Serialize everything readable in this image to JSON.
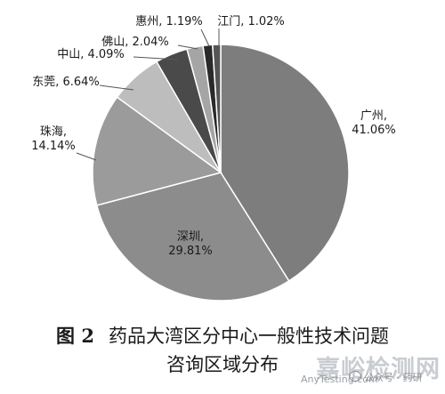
{
  "chart_data": {
    "type": "pie",
    "title": "",
    "slices": [
      {
        "label": "广州",
        "value": 41.06,
        "text": "广州,\n41.06%",
        "color": "#7d7d7d"
      },
      {
        "label": "深圳",
        "value": 29.81,
        "text": "深圳,\n29.81%",
        "color": "#8c8c8c"
      },
      {
        "label": "珠海",
        "value": 14.14,
        "text": "珠海,\n14.14%",
        "color": "#9b9b9b"
      },
      {
        "label": "东莞",
        "value": 6.64,
        "text": "东莞, 6.64%",
        "color": "#bdbdbd"
      },
      {
        "label": "中山",
        "value": 4.09,
        "text": "中山, 4.09%",
        "color": "#4a4a4a"
      },
      {
        "label": "佛山",
        "value": 2.04,
        "text": "佛山, 2.04%",
        "color": "#a5a5a5"
      },
      {
        "label": "惠州",
        "value": 1.19,
        "text": "惠州, 1.19%",
        "color": "#2a2a2a"
      },
      {
        "label": "江门",
        "value": 1.02,
        "text": "江门, 1.02%",
        "color": "#555555"
      }
    ],
    "start_angle_deg": 0,
    "direction": "clockwise"
  },
  "caption": {
    "figure_number": "图 2",
    "line1": "药品大湾区分中心一般性技术问题",
    "line2": "咨询区域分布"
  },
  "watermark": {
    "main": "嘉峪检测网",
    "sub": "AnyTesting.com",
    "wechat": "公众号 · 药研"
  }
}
